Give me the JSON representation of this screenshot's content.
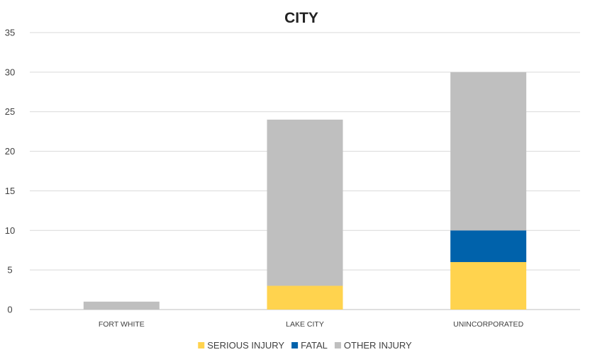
{
  "chart_data": {
    "type": "bar",
    "stacked": true,
    "title": "CITY",
    "xlabel": "",
    "ylabel": "",
    "categories": [
      "FORT WHITE",
      "LAKE CITY",
      "UNINCORPORATED"
    ],
    "series": [
      {
        "name": "SERIOUS INJURY",
        "values": [
          0,
          3,
          6
        ],
        "color": "#FFD34E"
      },
      {
        "name": "FATAL",
        "values": [
          0,
          0,
          4
        ],
        "color": "#0062AB"
      },
      {
        "name": "OTHER INJURY",
        "values": [
          1,
          21,
          20
        ],
        "color": "#BFBFBF"
      }
    ],
    "ylim": [
      0,
      35
    ],
    "yticks": [
      0,
      5,
      10,
      15,
      20,
      25,
      30,
      35
    ],
    "grid": true,
    "legend": "bottom"
  }
}
